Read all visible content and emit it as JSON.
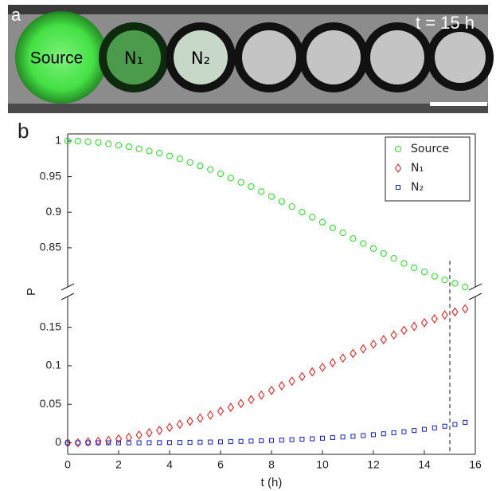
{
  "panel_a": {
    "label": "a",
    "time": "t = 15 h",
    "source": "Source",
    "n1": "N₁",
    "n2": "N₂"
  },
  "panel_b": {
    "label": "b"
  },
  "chart_data": {
    "type": "scatter",
    "x_label": "t (h)",
    "y_label": "P",
    "x": [
      0,
      0.4,
      0.8,
      1.2,
      1.6,
      2.0,
      2.4,
      2.8,
      3.2,
      3.6,
      4.0,
      4.4,
      4.8,
      5.2,
      5.6,
      6.0,
      6.4,
      6.8,
      7.2,
      7.6,
      8.0,
      8.4,
      8.8,
      9.2,
      9.6,
      10.0,
      10.4,
      10.8,
      11.2,
      11.6,
      12.0,
      12.4,
      12.8,
      13.2,
      13.6,
      14.0,
      14.4,
      14.8,
      15.2,
      15.6
    ],
    "series": [
      {
        "name": "Source",
        "color": "#22dd22",
        "marker": "circle",
        "axis": "y",
        "values": [
          1.0,
          1.0,
          0.999,
          0.998,
          0.996,
          0.994,
          0.992,
          0.989,
          0.986,
          0.983,
          0.979,
          0.975,
          0.97,
          0.965,
          0.96,
          0.954,
          0.948,
          0.942,
          0.936,
          0.929,
          0.922,
          0.915,
          0.908,
          0.9,
          0.893,
          0.886,
          0.878,
          0.871,
          0.863,
          0.856,
          0.849,
          0.842,
          0.835,
          0.828,
          0.822,
          0.816,
          0.81,
          0.805,
          0.8,
          0.795
        ]
      },
      {
        "name": "N₁",
        "color": "#ee1111",
        "marker": "diamond",
        "axis": "y2",
        "values": [
          0.0,
          0.0,
          0.001,
          0.002,
          0.003,
          0.005,
          0.007,
          0.01,
          0.013,
          0.016,
          0.02,
          0.024,
          0.028,
          0.032,
          0.036,
          0.041,
          0.046,
          0.051,
          0.056,
          0.062,
          0.068,
          0.074,
          0.08,
          0.086,
          0.092,
          0.098,
          0.104,
          0.11,
          0.116,
          0.122,
          0.128,
          0.134,
          0.14,
          0.146,
          0.151,
          0.156,
          0.161,
          0.166,
          0.17,
          0.174
        ]
      },
      {
        "name": "N₂",
        "color": "#1122cc",
        "marker": "square",
        "axis": "y2",
        "values": [
          0,
          0,
          0,
          0,
          0,
          0,
          0,
          0,
          0.0001,
          0.0002,
          0.0003,
          0.0004,
          0.0006,
          0.0008,
          0.001,
          0.0012,
          0.0015,
          0.0018,
          0.0022,
          0.0026,
          0.003,
          0.0035,
          0.004,
          0.0046,
          0.0052,
          0.0059,
          0.0067,
          0.0075,
          0.0084,
          0.0094,
          0.0105,
          0.0117,
          0.013,
          0.0144,
          0.0159,
          0.0175,
          0.0194,
          0.0215,
          0.0238,
          0.0265
        ]
      }
    ],
    "xlim": [
      0,
      16
    ],
    "xticks": [
      0,
      2,
      4,
      6,
      8,
      10,
      12,
      14,
      16
    ],
    "ylim": [
      0.795,
      1.01
    ],
    "yticks": [
      0.85,
      0.9,
      0.95,
      1
    ],
    "y2lim": [
      -0.015,
      0.19
    ],
    "y2ticks": [
      0,
      0.05,
      0.1,
      0.15
    ],
    "vline": 15,
    "legend": "upper right"
  }
}
